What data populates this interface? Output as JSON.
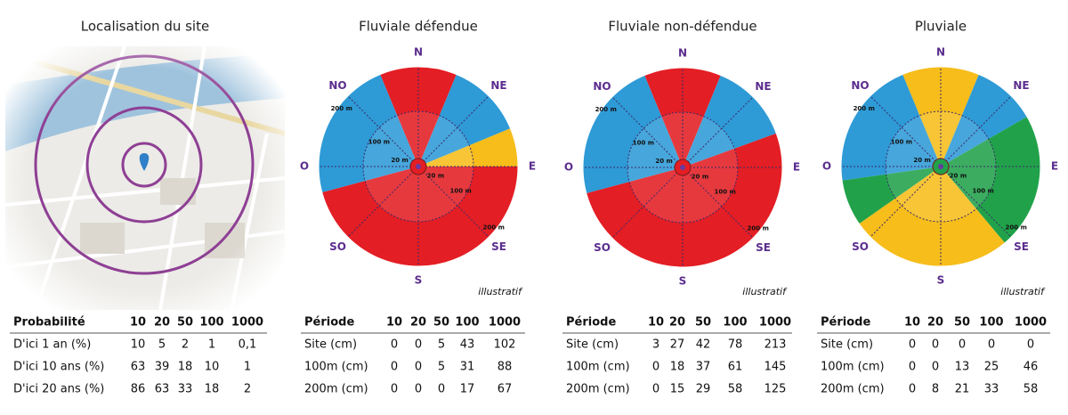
{
  "map": {
    "title": "Localisation du site"
  },
  "roses": [
    {
      "title": "Fluviale défendue",
      "directions": [
        "N",
        "NE",
        "E",
        "SE",
        "S",
        "SO",
        "O",
        "NO"
      ],
      "ring_labels": [
        "20 m",
        "100 m",
        "200 m"
      ],
      "note": "illustratif"
    },
    {
      "title": "Fluviale non-défendue",
      "directions": [
        "N",
        "NE",
        "E",
        "SE",
        "S",
        "SO",
        "O",
        "NO"
      ],
      "ring_labels": [
        "20 m",
        "100 m",
        "200 m"
      ],
      "note": "illustratif"
    },
    {
      "title": "Pluviale",
      "directions": [
        "N",
        "NE",
        "E",
        "SE",
        "S",
        "SO",
        "O",
        "NO"
      ],
      "ring_labels": [
        "20 m",
        "100 m",
        "200 m"
      ],
      "note": "illustratif"
    }
  ],
  "tables": [
    {
      "header": [
        "Probabilité",
        "10",
        "20",
        "50",
        "100",
        "1000"
      ],
      "rows": [
        [
          "D'ici 1 an  (%)",
          "10",
          "5",
          "2",
          "1",
          "0,1"
        ],
        [
          "D'ici 10 ans (%)",
          "63",
          "39",
          "18",
          "10",
          "1"
        ],
        [
          "D'ici 20 ans (%)",
          "86",
          "63",
          "33",
          "18",
          "2"
        ]
      ]
    },
    {
      "header": [
        "Période",
        "10",
        "20",
        "50",
        "100",
        "1000"
      ],
      "rows": [
        [
          "Site (cm)",
          "0",
          "0",
          "5",
          "43",
          "102"
        ],
        [
          "100m (cm)",
          "0",
          "0",
          "5",
          "31",
          "88"
        ],
        [
          "200m (cm)",
          "0",
          "0",
          "0",
          "17",
          "67"
        ]
      ]
    },
    {
      "header": [
        "Période",
        "10",
        "20",
        "50",
        "100",
        "1000"
      ],
      "rows": [
        [
          "Site (cm)",
          "3",
          "27",
          "42",
          "78",
          "213"
        ],
        [
          "100m (cm)",
          "0",
          "18",
          "37",
          "61",
          "145"
        ],
        [
          "200m (cm)",
          "0",
          "15",
          "29",
          "58",
          "125"
        ]
      ]
    },
    {
      "header": [
        "Période",
        "10",
        "20",
        "50",
        "100",
        "1000"
      ],
      "rows": [
        [
          "Site (cm)",
          "0",
          "0",
          "0",
          "0",
          "0"
        ],
        [
          "100m (cm)",
          "0",
          "0",
          "13",
          "25",
          "46"
        ],
        [
          "200m (cm)",
          "0",
          "8",
          "21",
          "33",
          "58"
        ]
      ]
    }
  ]
}
